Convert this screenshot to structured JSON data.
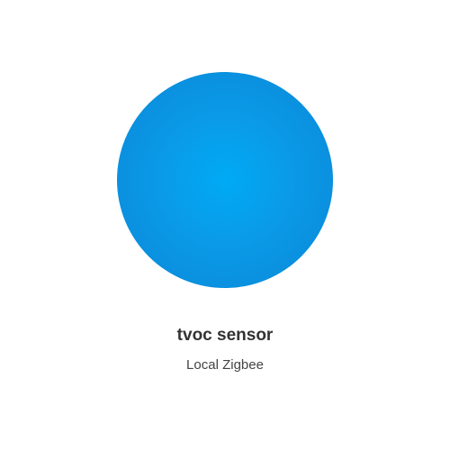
{
  "device": {
    "name": "tvoc sensor",
    "integration": "Local Zigbee",
    "icon": "device-orb",
    "colors": {
      "orb_center": "#00aaf5",
      "orb_edge": "#0a86d6"
    }
  }
}
